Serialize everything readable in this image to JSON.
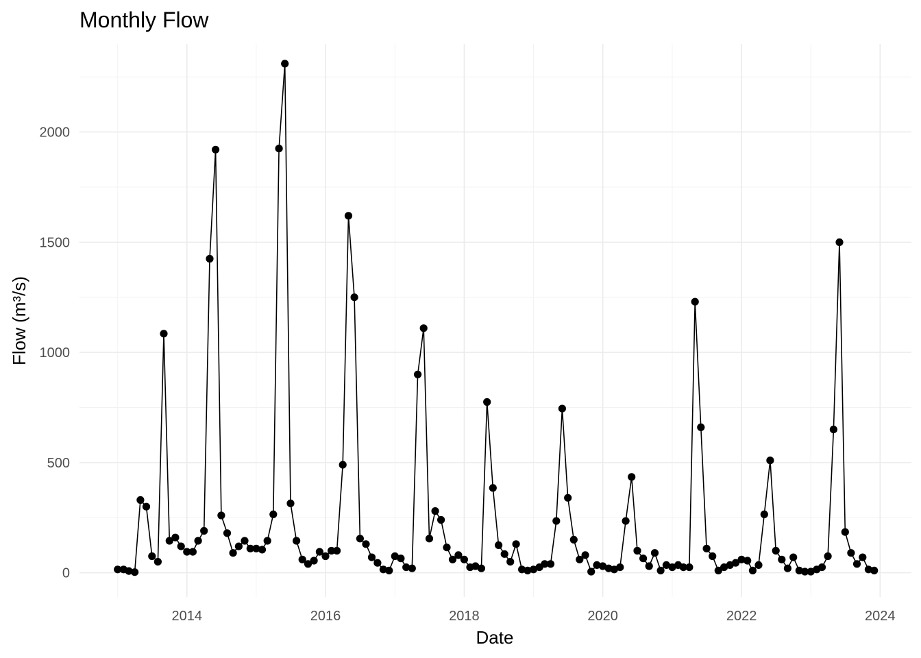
{
  "chart_data": {
    "type": "line",
    "title": "Monthly Flow",
    "xlabel": "Date",
    "ylabel": "Flow (m³/s)",
    "xlim": [
      "2012-06-14",
      "2024-06-14"
    ],
    "ylim": [
      -110,
      2400
    ],
    "x_ticks": [
      "2014",
      "2016",
      "2018",
      "2020",
      "2022",
      "2024"
    ],
    "y_ticks": [
      0,
      500,
      1000,
      1500,
      2000
    ],
    "grid": true,
    "legend": "none",
    "series": [
      {
        "color": "#000000",
        "x": [
          "2013-01-01",
          "2013-02-01",
          "2013-03-01",
          "2013-04-01",
          "2013-05-01",
          "2013-06-01",
          "2013-07-01",
          "2013-08-01",
          "2013-09-01",
          "2013-10-01",
          "2013-11-01",
          "2013-12-01",
          "2014-01-01",
          "2014-02-01",
          "2014-03-01",
          "2014-04-01",
          "2014-05-01",
          "2014-06-01",
          "2014-07-01",
          "2014-08-01",
          "2014-09-01",
          "2014-10-01",
          "2014-11-01",
          "2014-12-01",
          "2015-01-01",
          "2015-02-01",
          "2015-03-01",
          "2015-04-01",
          "2015-05-01",
          "2015-06-01",
          "2015-07-01",
          "2015-08-01",
          "2015-09-01",
          "2015-10-01",
          "2015-11-01",
          "2015-12-01",
          "2016-01-01",
          "2016-02-01",
          "2016-03-01",
          "2016-04-01",
          "2016-05-01",
          "2016-06-01",
          "2016-07-01",
          "2016-08-01",
          "2016-09-01",
          "2016-10-01",
          "2016-11-01",
          "2016-12-01",
          "2017-01-01",
          "2017-02-01",
          "2017-03-01",
          "2017-04-01",
          "2017-05-01",
          "2017-06-01",
          "2017-07-01",
          "2017-08-01",
          "2017-09-01",
          "2017-10-01",
          "2017-11-01",
          "2017-12-01",
          "2018-01-01",
          "2018-02-01",
          "2018-03-01",
          "2018-04-01",
          "2018-05-01",
          "2018-06-01",
          "2018-07-01",
          "2018-08-01",
          "2018-09-01",
          "2018-10-01",
          "2018-11-01",
          "2018-12-01",
          "2019-01-01",
          "2019-02-01",
          "2019-03-01",
          "2019-04-01",
          "2019-05-01",
          "2019-06-01",
          "2019-07-01",
          "2019-08-01",
          "2019-09-01",
          "2019-10-01",
          "2019-11-01",
          "2019-12-01",
          "2020-01-01",
          "2020-02-01",
          "2020-03-01",
          "2020-04-01",
          "2020-05-01",
          "2020-06-01",
          "2020-07-01",
          "2020-08-01",
          "2020-09-01",
          "2020-10-01",
          "2020-11-01",
          "2020-12-01",
          "2021-01-01",
          "2021-02-01",
          "2021-03-01",
          "2021-04-01",
          "2021-05-01",
          "2021-06-01",
          "2021-07-01",
          "2021-08-01",
          "2021-09-01",
          "2021-10-01",
          "2021-11-01",
          "2021-12-01",
          "2022-01-01",
          "2022-02-01",
          "2022-03-01",
          "2022-04-01",
          "2022-05-01",
          "2022-06-01",
          "2022-07-01",
          "2022-08-01",
          "2022-09-01",
          "2022-10-01",
          "2022-11-01",
          "2022-12-01",
          "2023-01-01",
          "2023-02-01",
          "2023-03-01",
          "2023-04-01",
          "2023-05-01",
          "2023-06-01",
          "2023-07-01",
          "2023-08-01",
          "2023-09-01",
          "2023-10-01",
          "2023-11-01",
          "2023-12-01"
        ],
        "values": [
          15,
          15,
          8,
          3,
          330,
          300,
          75,
          50,
          1085,
          145,
          160,
          120,
          95,
          95,
          145,
          190,
          1425,
          1920,
          260,
          180,
          90,
          120,
          145,
          110,
          110,
          105,
          145,
          265,
          1925,
          2310,
          315,
          145,
          60,
          40,
          55,
          95,
          75,
          100,
          100,
          490,
          1620,
          1250,
          155,
          130,
          70,
          45,
          15,
          10,
          75,
          65,
          25,
          20,
          900,
          1110,
          155,
          280,
          240,
          115,
          60,
          80,
          60,
          25,
          30,
          20,
          775,
          385,
          125,
          85,
          50,
          130,
          15,
          10,
          15,
          25,
          40,
          40,
          235,
          745,
          340,
          150,
          60,
          80,
          5,
          35,
          30,
          20,
          15,
          25,
          235,
          435,
          100,
          65,
          30,
          90,
          10,
          35,
          25,
          35,
          25,
          25,
          1230,
          660,
          110,
          75,
          10,
          25,
          35,
          45,
          60,
          55,
          10,
          35,
          265,
          510,
          100,
          60,
          20,
          70,
          10,
          5,
          5,
          15,
          25,
          75,
          650,
          1500,
          185,
          90,
          40,
          70,
          15,
          10
        ]
      }
    ]
  }
}
